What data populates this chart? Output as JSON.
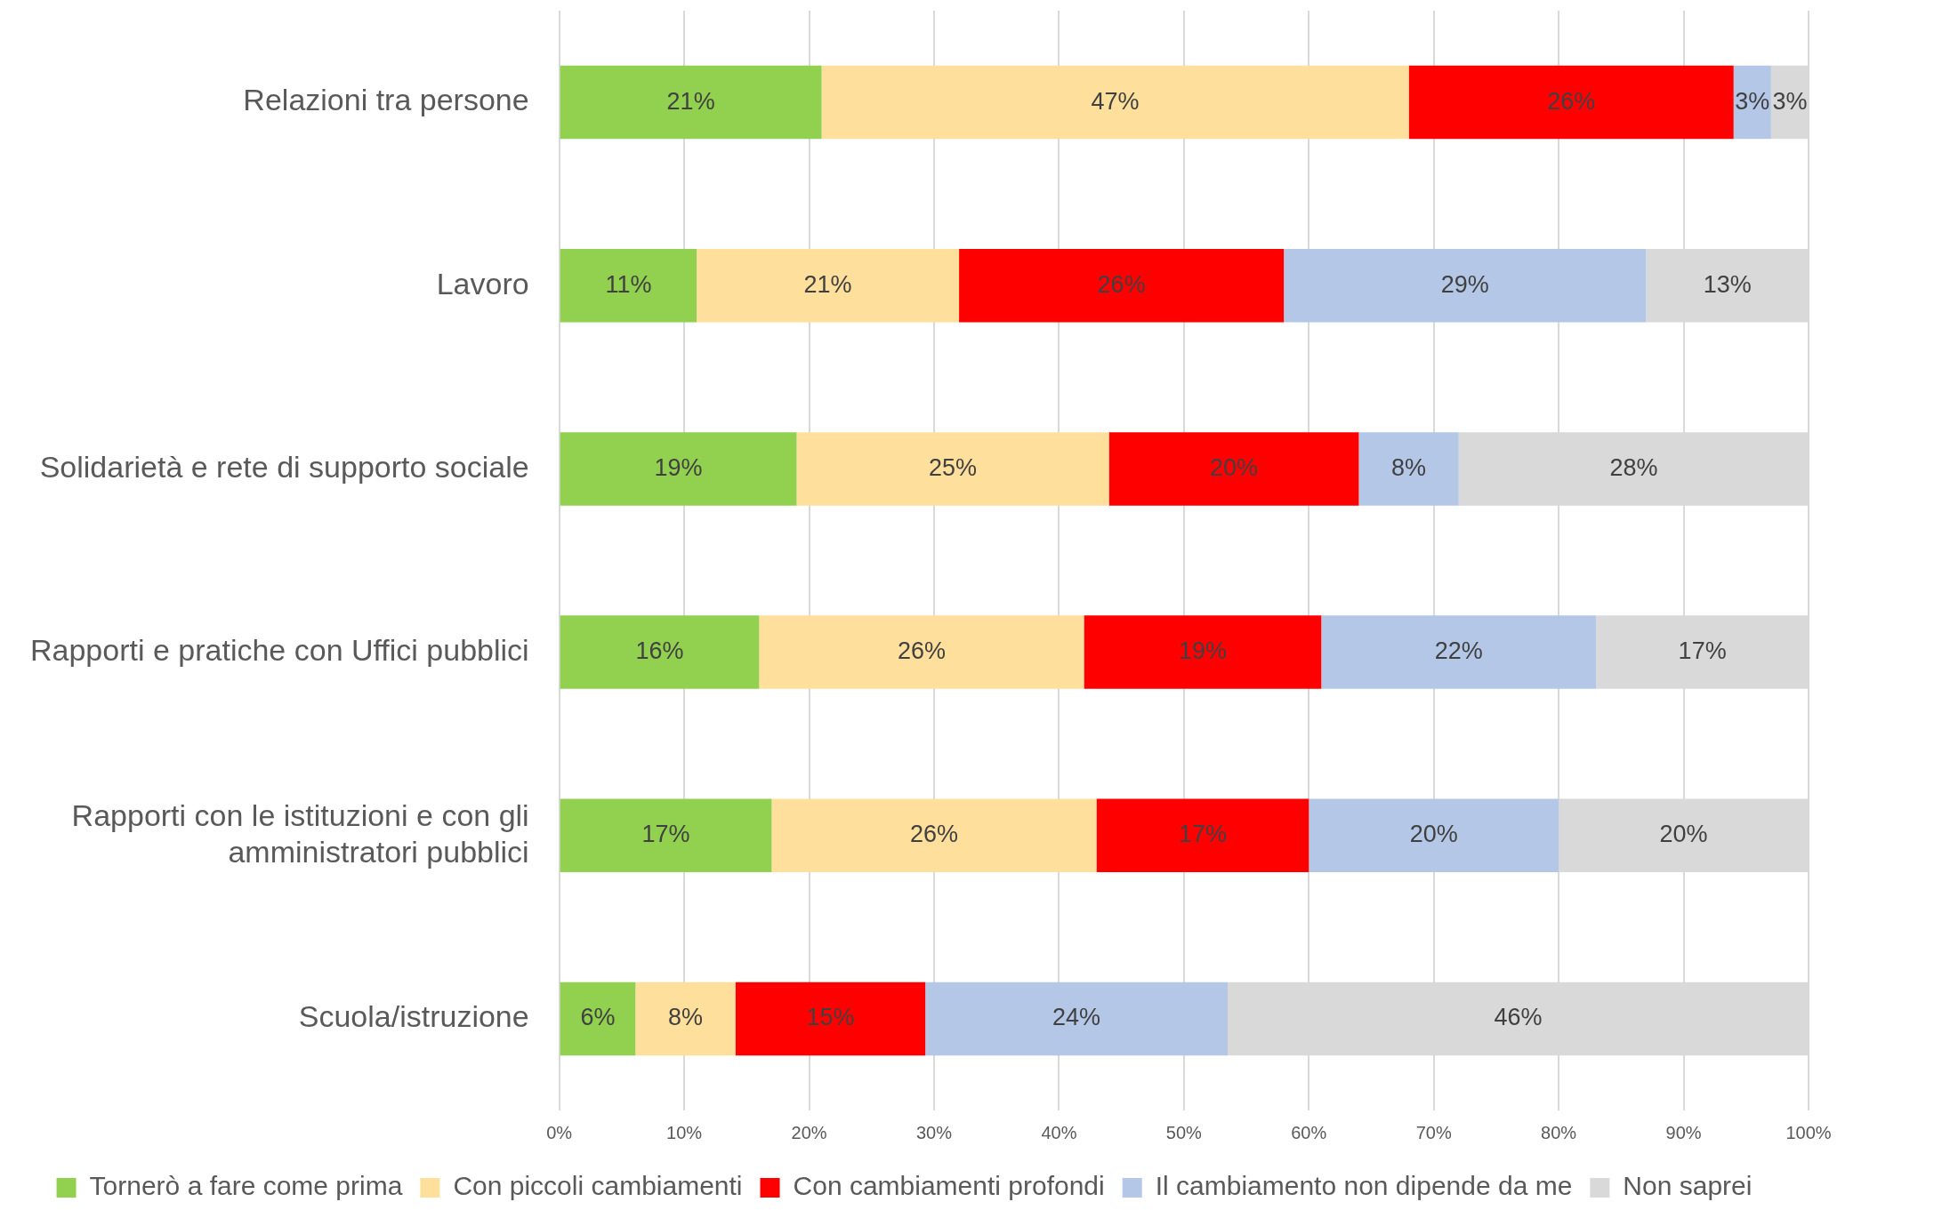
{
  "chart_data": {
    "type": "bar",
    "orientation": "horizontal",
    "stacked": true,
    "categories": [
      "Relazioni tra persone",
      "Lavoro",
      "Solidarietà e rete di supporto sociale",
      "Rapporti e pratiche con Uffici pubblici",
      "Rapporti con le istituzioni e con gli amministratori pubblici",
      "Scuola/istruzione"
    ],
    "series": [
      {
        "name": "Tornerò a fare come prima",
        "color": "#92d050",
        "values": [
          21,
          11,
          19,
          16,
          17,
          6.1
        ],
        "value_labels": [
          "21%",
          "11%",
          "19%",
          "16%",
          "17%",
          "6%"
        ]
      },
      {
        "name": "Con piccoli cambiamenti",
        "color": "#fedf9b",
        "values": [
          47,
          21,
          25,
          26,
          26,
          8
        ],
        "value_labels": [
          "47%",
          "21%",
          "25%",
          "26%",
          "26%",
          "8%"
        ]
      },
      {
        "name": "Con cambiamenti profondi",
        "color": "#ff0000",
        "values": [
          26,
          26,
          20,
          19,
          17,
          15.2
        ],
        "value_labels": [
          "26%",
          "26%",
          "20%",
          "19%",
          "17%",
          "15%"
        ]
      },
      {
        "name": "Il cambiamento non dipende da me",
        "color": "#b4c7e7",
        "values": [
          3,
          29,
          8,
          22,
          20,
          24.2
        ],
        "value_labels": [
          "3%",
          "29%",
          "8%",
          "22%",
          "20%",
          "24%"
        ]
      },
      {
        "name": "Non saprei",
        "color": "#d9d9d9",
        "values": [
          3,
          13,
          28,
          17,
          20,
          46.5
        ],
        "value_labels": [
          "3%",
          "13%",
          "28%",
          "17%",
          "20%",
          "46%"
        ]
      }
    ],
    "xlim": [
      0,
      100
    ],
    "xticks": [
      {
        "value": 0,
        "label": "0%"
      },
      {
        "value": 10,
        "label": "10%"
      },
      {
        "value": 20,
        "label": "20%"
      },
      {
        "value": 30,
        "label": "30%"
      },
      {
        "value": 40,
        "label": "40%"
      },
      {
        "value": 50,
        "label": "50%"
      },
      {
        "value": 60,
        "label": "60%"
      },
      {
        "value": 70,
        "label": "70%"
      },
      {
        "value": 80,
        "label": "80%"
      },
      {
        "value": 90,
        "label": "90%"
      },
      {
        "value": 100,
        "label": "100%"
      }
    ],
    "grid": "x",
    "legend": "bottom"
  }
}
